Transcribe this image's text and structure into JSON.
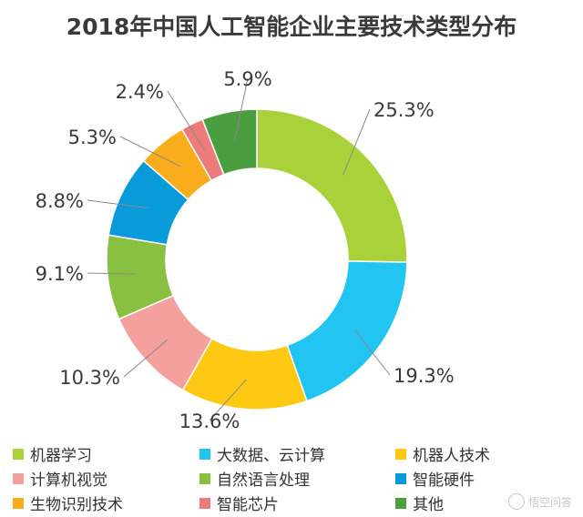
{
  "title": "2018年中国人工智能企业主要技术类型分布",
  "watermark": "悟空问答",
  "chart_data": {
    "type": "pie",
    "donut": true,
    "title": "2018年中国人工智能企业主要技术类型分布",
    "slices": [
      {
        "label": "机器学习",
        "value": 25.3,
        "display": "25.3%",
        "color": "#a9d13a"
      },
      {
        "label": "大数据、云计算",
        "value": 19.3,
        "display": "19.3%",
        "color": "#22c4f2"
      },
      {
        "label": "机器人技术",
        "value": 13.6,
        "display": "13.6%",
        "color": "#ffc913"
      },
      {
        "label": "计算机视觉",
        "value": 10.3,
        "display": "10.3%",
        "color": "#f4a09c"
      },
      {
        "label": "自然语言处理",
        "value": 9.1,
        "display": "9.1%",
        "color": "#8ac042"
      },
      {
        "label": "智能硬件",
        "value": 8.8,
        "display": "8.8%",
        "color": "#099ad9"
      },
      {
        "label": "生物识别技术",
        "value": 5.3,
        "display": "5.3%",
        "color": "#f9ad1c"
      },
      {
        "label": "智能芯片",
        "value": 2.4,
        "display": "2.4%",
        "color": "#ee7b7c"
      },
      {
        "label": "其他",
        "value": 5.9,
        "display": "5.9%",
        "color": "#4a9e3f"
      }
    ],
    "legend_position": "bottom"
  }
}
